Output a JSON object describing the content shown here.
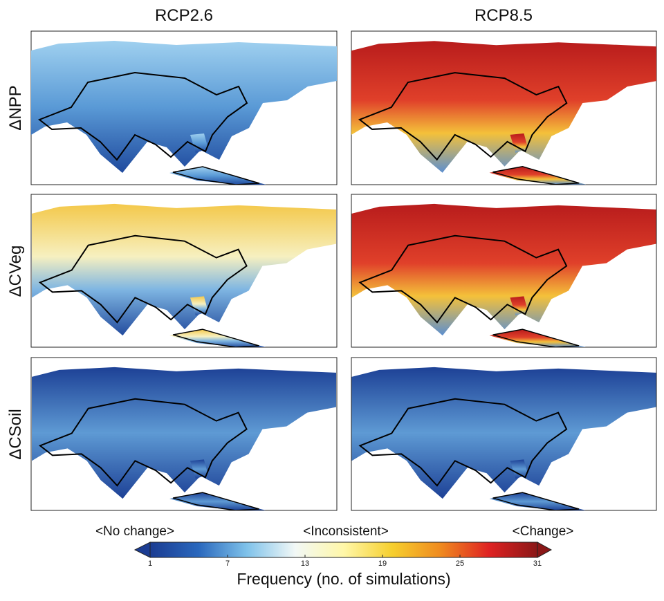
{
  "columns": [
    "RCP2.6",
    "RCP8.5"
  ],
  "rows": [
    "ΔNPP",
    "ΔCVeg",
    "ΔCSoil"
  ],
  "colorbar": {
    "annotations": [
      "<No change>",
      "<Inconsistent>",
      "<Change>"
    ],
    "label": "Frequency (no. of simulations)",
    "lim": [
      1,
      31
    ],
    "ticks": [
      1,
      7,
      13,
      19,
      25,
      31
    ],
    "colors": [
      "#1b3c92",
      "#2a68bd",
      "#7fc2ea",
      "#f2f8f6",
      "#fff7a8",
      "#f6cf2e",
      "#ef8a1f",
      "#df2222",
      "#8a1717"
    ]
  }
}
